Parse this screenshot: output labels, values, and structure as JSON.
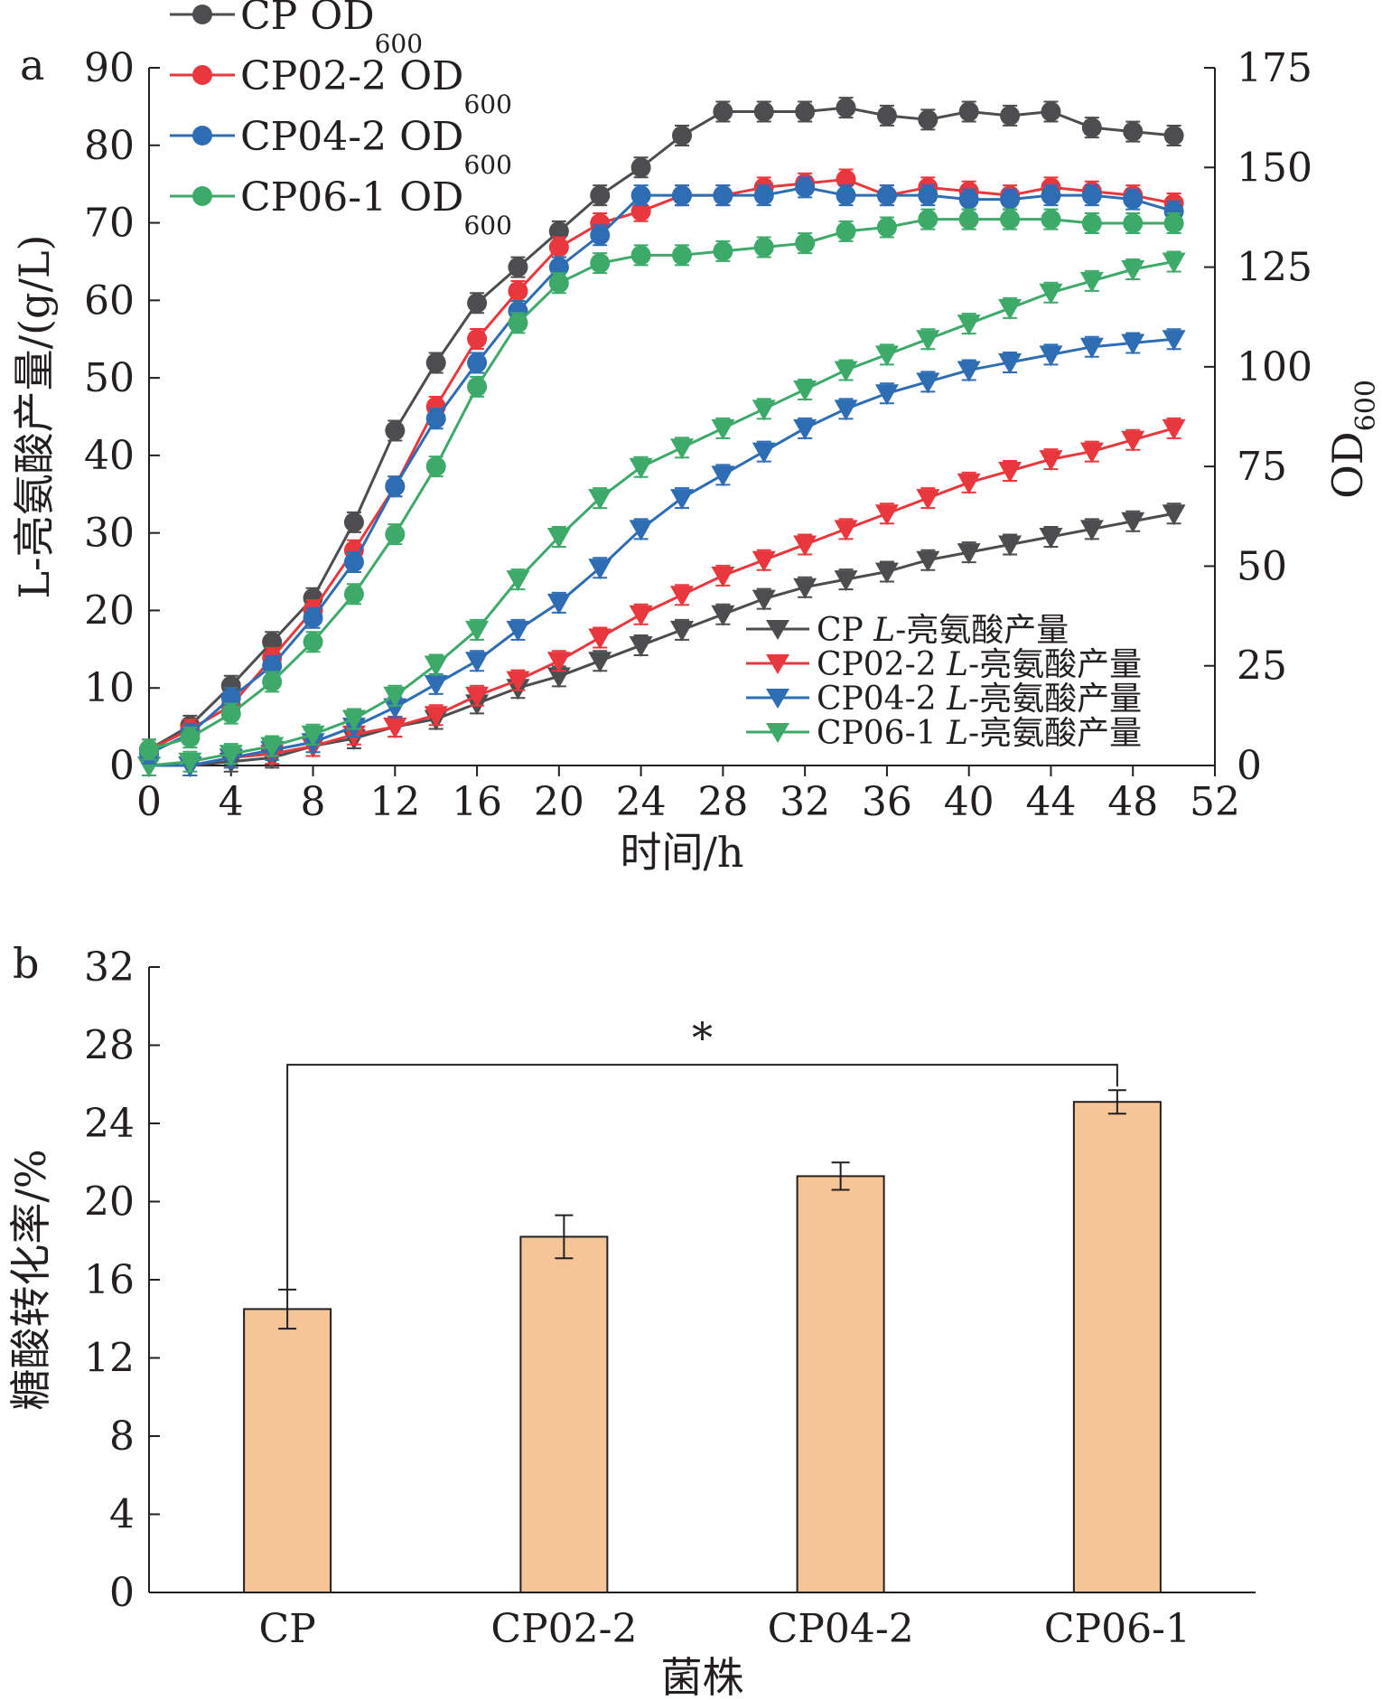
{
  "panel_a_label": "a",
  "panel_b_label": "b",
  "chart_data": [
    {
      "panel": "a",
      "type": "line",
      "xlabel": "时间/h",
      "ylabel_left": "L-亮氨酸产量/(g/L)",
      "ylabel_right": "OD600",
      "xlim": [
        0,
        52
      ],
      "xticks": [
        0,
        4,
        8,
        12,
        16,
        20,
        24,
        28,
        32,
        36,
        40,
        44,
        48,
        52
      ],
      "ylim_left": [
        0,
        90
      ],
      "yticks_left": [
        0,
        10,
        20,
        30,
        40,
        50,
        60,
        70,
        80,
        90
      ],
      "ylim_right": [
        0,
        175
      ],
      "yticks_right": [
        0,
        25,
        50,
        75,
        100,
        125,
        150,
        175
      ],
      "x": [
        0,
        2,
        4,
        6,
        8,
        10,
        12,
        14,
        16,
        18,
        20,
        22,
        24,
        26,
        28,
        30,
        32,
        34,
        36,
        38,
        40,
        42,
        44,
        46,
        48,
        50
      ],
      "od_series": [
        {
          "name": "CP OD600",
          "color": "#4d4d4f",
          "axis": "right",
          "marker": "circle",
          "values": [
            4,
            10,
            20,
            31,
            42,
            61,
            84,
            101,
            116,
            125,
            134,
            143,
            150,
            158,
            164,
            164,
            164,
            165,
            163,
            162,
            164,
            163,
            164,
            160,
            159,
            158
          ]
        },
        {
          "name": "CP02-2 OD600",
          "color": "#e8383d",
          "axis": "right",
          "marker": "circle",
          "values": [
            4,
            9,
            15,
            27,
            39,
            54,
            70,
            90,
            107,
            119,
            130,
            136,
            139,
            143,
            143,
            145,
            146,
            147,
            143,
            145,
            144,
            143,
            145,
            144,
            143,
            141
          ]
        },
        {
          "name": "CP04-2 OD600",
          "color": "#2e6db4",
          "axis": "right",
          "marker": "circle",
          "values": [
            3,
            8,
            17,
            25,
            37,
            51,
            70,
            87,
            101,
            114,
            125,
            133,
            143,
            143,
            143,
            143,
            145,
            143,
            143,
            143,
            142,
            142,
            143,
            143,
            142,
            139
          ]
        },
        {
          "name": "CP06-1 OD600",
          "color": "#3daa6a",
          "axis": "right",
          "marker": "circle",
          "values": [
            4,
            7,
            13,
            21,
            31,
            43,
            58,
            75,
            95,
            111,
            121,
            126,
            128,
            128,
            129,
            130,
            131,
            134,
            135,
            137,
            137,
            137,
            137,
            136,
            136,
            136
          ]
        }
      ],
      "yield_series": [
        {
          "name": "CP L-亮氨酸产量",
          "color": "#4d4d4f",
          "axis": "left",
          "marker": "triangle-down",
          "values": [
            0,
            0,
            0.5,
            1,
            2.5,
            3.5,
            5,
            6,
            8,
            10,
            11.5,
            13.5,
            15.5,
            17.5,
            19.5,
            21.5,
            23,
            24,
            25,
            26.5,
            27.5,
            28.5,
            29.5,
            30.5,
            31.5,
            32.5
          ]
        },
        {
          "name": "CP02-2 L-亮氨酸产量",
          "color": "#e8383d",
          "axis": "left",
          "marker": "triangle-down",
          "values": [
            0,
            0,
            1,
            1.5,
            2.5,
            4,
            5,
            6.5,
            9,
            11,
            13.5,
            16.5,
            19.5,
            22,
            24.5,
            26.5,
            28.5,
            30.5,
            32.5,
            34.5,
            36.5,
            38,
            39.5,
            40.5,
            42,
            43.5
          ]
        },
        {
          "name": "CP04-2 L-亮氨酸产量",
          "color": "#2e6db4",
          "axis": "left",
          "marker": "triangle-down",
          "values": [
            0,
            0,
            1,
            2,
            3,
            5,
            7.5,
            10.5,
            13.5,
            17.5,
            21,
            25.5,
            30.5,
            34.5,
            37.5,
            40.5,
            43.5,
            46,
            48,
            49.5,
            51,
            52,
            53,
            54,
            54.5,
            55
          ]
        },
        {
          "name": "CP06-1 L-亮氨酸产量",
          "color": "#3daa6a",
          "axis": "left",
          "marker": "triangle-down",
          "values": [
            0,
            0.5,
            1.5,
            2.5,
            4,
            6,
            9,
            13,
            17.5,
            24,
            29.5,
            34.5,
            38.5,
            41,
            43.5,
            46,
            48.5,
            51,
            53,
            55,
            57,
            59,
            61,
            62.5,
            64,
            65
          ]
        }
      ],
      "legend_od": [
        "CP OD",
        "CP02-2 OD",
        "CP04-2 OD",
        "CP06-1 OD"
      ],
      "legend_od_sub": "600",
      "legend_yield_prefix": [
        "CP ",
        "CP02-2 ",
        "CP04-2 ",
        "CP06-1 "
      ],
      "legend_yield_suffix": "L-亮氨酸产量"
    },
    {
      "panel": "b",
      "type": "bar",
      "xlabel": "菌株",
      "ylabel": "糖酸转化率/%",
      "categories": [
        "CP",
        "CP02-2",
        "CP04-2",
        "CP06-1"
      ],
      "values": [
        14.5,
        18.2,
        21.3,
        25.1
      ],
      "errors": [
        1.0,
        1.1,
        0.7,
        0.6
      ],
      "ylim": [
        0,
        32
      ],
      "yticks": [
        0,
        4,
        8,
        12,
        16,
        20,
        24,
        28,
        32
      ],
      "bar_color": "#f5c597",
      "significance": {
        "from": "CP",
        "to": "CP06-1",
        "label": "*"
      }
    }
  ]
}
